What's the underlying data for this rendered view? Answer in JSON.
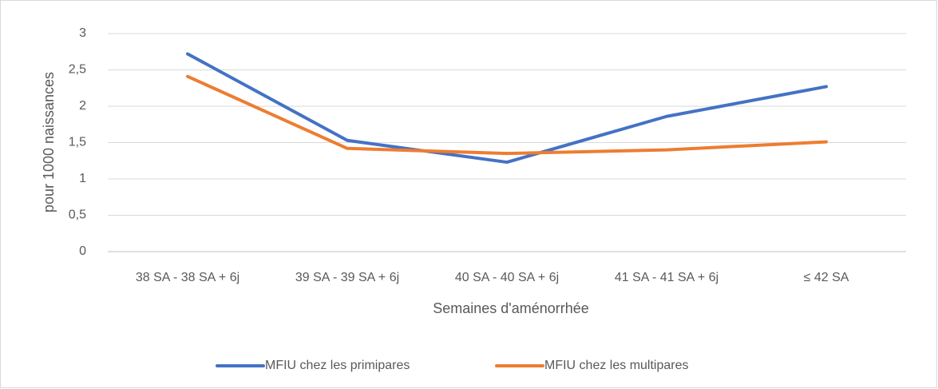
{
  "chart_data": {
    "type": "line",
    "categories": [
      "38 SA - 38 SA + 6j",
      "39 SA - 39 SA + 6j",
      "40 SA - 40 SA + 6j",
      "41 SA - 41 SA + 6j",
      "≤ 42 SA"
    ],
    "series": [
      {
        "name": "MFIU chez les primipares",
        "color": "#4472c4",
        "values": [
          2.72,
          1.53,
          1.23,
          1.86,
          2.27
        ]
      },
      {
        "name": "MFIU chez les multipares",
        "color": "#ed7d31",
        "values": [
          2.41,
          1.42,
          1.35,
          1.4,
          1.51
        ]
      }
    ],
    "x_label": "Semaines d'aménorrhée",
    "y_label": "pour 1000 naissances",
    "ylim": [
      0,
      3
    ],
    "yticks": [
      0,
      {
        "value": 0.5,
        "label": "0,5"
      },
      1,
      {
        "value": 1.5,
        "label": "1,5"
      },
      2,
      {
        "value": 2.5,
        "label": "2,5"
      },
      3
    ],
    "grid": true,
    "legend": "bottom"
  }
}
